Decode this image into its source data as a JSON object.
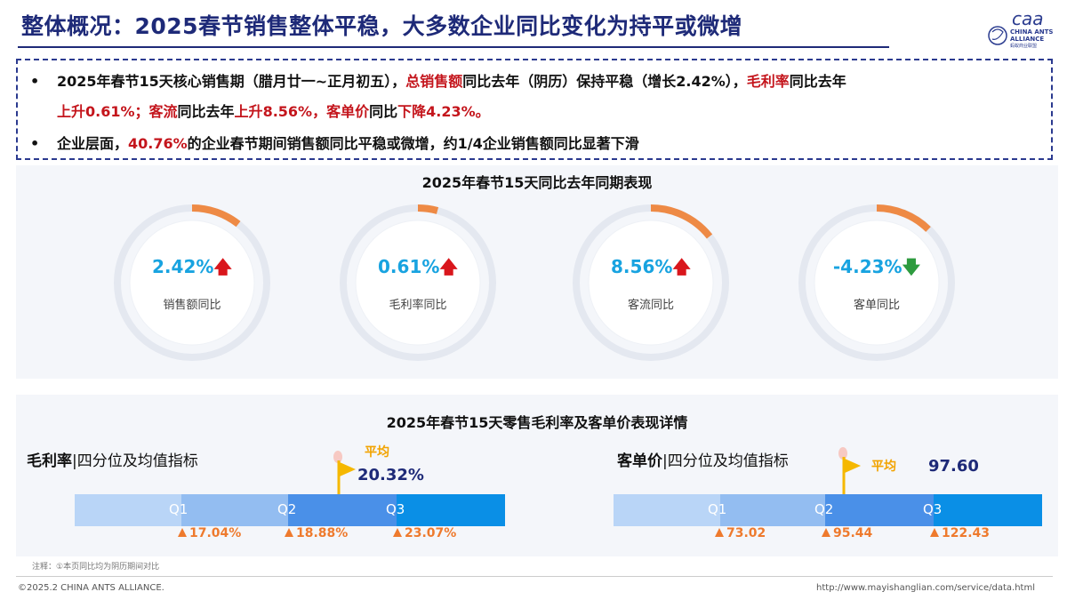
{
  "title": "整体概况：2025春节销售整体平稳，大多数企业同比变化为持平或微增",
  "logo": {
    "line1": "CHINA ANTS",
    "line2": "ALLIANCE",
    "line3": "蚂蚁商业联盟"
  },
  "summary": {
    "bullet1": {
      "p1": "2025年春节15天核心销售期（腊月廿一~正月初五），",
      "p2": "总销售额",
      "p3": "同比去年（阴历）保持平稳（增长2.42%），",
      "p4": "毛利率",
      "p5": "同比去年",
      "p6": "上升0.61%；",
      "p7": "客流",
      "p8": "同比去年",
      "p9": "上升",
      "p10": "8.56%，",
      "p11": "客单价",
      "p12": "同比",
      "p13": "下降",
      "p14": "4.23%。"
    },
    "bullet2": {
      "p1": "企业层面，",
      "p2": "40.76%",
      "p3": "的企业春节期间销售额同比平稳或微增，约1/4企业销售额同比显著下滑"
    }
  },
  "kpi_panel": {
    "title": "2025年春节15天同比去年同期表现",
    "items": [
      {
        "value": "2.42%",
        "arrow": "🡅",
        "label": "销售额同比"
      },
      {
        "value": "0.61%",
        "arrow": "🡅",
        "label": "毛利率同比"
      },
      {
        "value": "8.56%",
        "arrow": "🡅",
        "label": "客流同比"
      },
      {
        "value": "-4.23%",
        "arrow": "🡇",
        "label": "客单同比"
      }
    ]
  },
  "detail_panel": {
    "title": "2025年春节15天零售毛利率及客单价表现详情",
    "margin": {
      "title_bold": "毛利率",
      "title_rest": "|四分位及均值指标",
      "avg_label": "平均",
      "avg_value": "20.32%",
      "q_labels": [
        "Q1",
        "Q2",
        "Q3"
      ],
      "q_values": [
        "17.04%",
        "18.88%",
        "23.07%"
      ]
    },
    "price": {
      "title_bold": "客单价",
      "title_rest": "|四分位及均值指标",
      "avg_label": "平均",
      "avg_value": "97.60",
      "q_labels": [
        "Q1",
        "Q2",
        "Q3"
      ],
      "q_values": [
        "73.02",
        "95.44",
        "122.43"
      ]
    }
  },
  "note": "注释：①本页同比均为阴历期间对比",
  "footer": {
    "copyright": "©2025.2 CHINA ANTS ALLIANCE.",
    "url": "http://www.mayishanglian.com/service/data.html"
  },
  "colors": {
    "title": "#1e2a78",
    "highlight_red": "#c4151c",
    "kpi_value": "#18a3e0",
    "ring_accent": "#ee8a45",
    "arrow_up": "#d9161c",
    "arrow_down": "#2e9b3f",
    "bar_seg1": "#b9d5f7",
    "bar_seg2": "#93bdf1",
    "bar_seg3": "#4a90e8",
    "bar_seg4": "#0a8fe6",
    "quartile_marker": "#ee7a2d",
    "avg_flag": "#f5b800"
  }
}
